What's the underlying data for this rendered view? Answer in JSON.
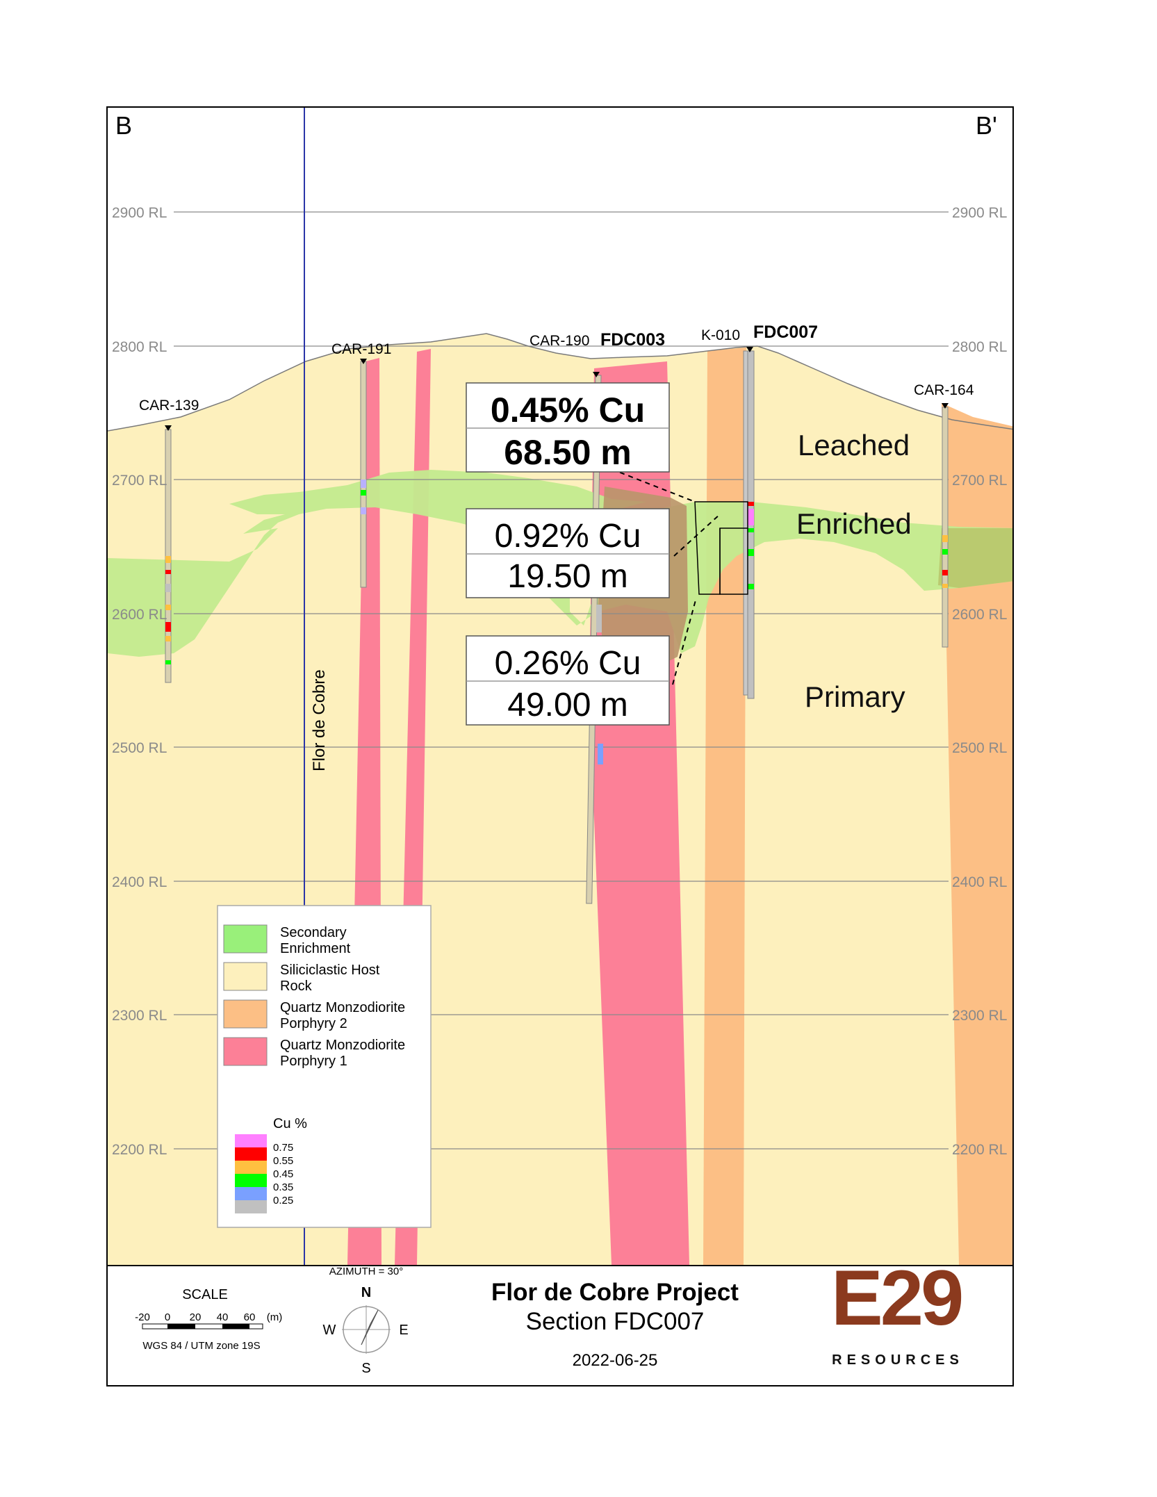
{
  "section": {
    "corner_left": "B",
    "corner_right": "B'",
    "rl_levels": [
      "2900 RL",
      "2800 RL",
      "2700 RL",
      "2600 RL",
      "2500 RL",
      "2400 RL",
      "2300 RL",
      "2200 RL"
    ],
    "fault_label": "Flor de Cobre",
    "holes": {
      "car139": "CAR-139",
      "car191": "CAR-191",
      "car190": "CAR-190",
      "fdc003": "FDC003",
      "k010": "K-010",
      "fdc007": "FDC007",
      "car164": "CAR-164"
    },
    "zones": {
      "leached": "Leached",
      "enriched": "Enriched",
      "primary": "Primary"
    },
    "intercepts": [
      {
        "grade": "0.45% Cu",
        "length": "68.50 m"
      },
      {
        "grade": "0.92% Cu",
        "length": "19.50 m"
      },
      {
        "grade": "0.26% Cu",
        "length": "49.00 m"
      }
    ]
  },
  "legend": {
    "units": [
      {
        "label_1": "Secondary",
        "label_2": "Enrichment",
        "color": "#99f07a"
      },
      {
        "label_1": "Siliciclastic Host",
        "label_2": "Rock",
        "color": "#fdf0bd"
      },
      {
        "label_1": "Quartz Monzodiorite",
        "label_2": "Porphyry 2",
        "color": "#fcbf85"
      },
      {
        "label_1": "Quartz Monzodiorite",
        "label_2": "Porphyry 1",
        "color": "#fc8097"
      }
    ],
    "cu_title": "Cu %",
    "cu_scale": [
      {
        "value": "0.75",
        "color": "#ff80ff"
      },
      {
        "value": "0.55",
        "color": "#ff0000"
      },
      {
        "value": "0.45",
        "color": "#ffc040"
      },
      {
        "value": "0.35",
        "color": "#00ff00"
      },
      {
        "value": "0.25",
        "color": "#7aa0ff"
      },
      {
        "value": "",
        "color": "#c0c0c0"
      }
    ]
  },
  "titleblock": {
    "scale_label": "SCALE",
    "scale_ticks": [
      "-20",
      "0",
      "20",
      "40",
      "60"
    ],
    "scale_unit": "(m)",
    "datum": "WGS 84 / UTM zone 19S",
    "azimuth": "AZIMUTH = 30°",
    "compass": {
      "n": "N",
      "s": "S",
      "e": "E",
      "w": "W"
    },
    "project": "Flor de Cobre Project",
    "section": "Section FDC007",
    "date": "2022-06-25",
    "logo_text": "E29",
    "logo_sub": "RESOURCES"
  },
  "colors": {
    "host": "#fdf0bd",
    "enrichment": "#c3ea8e",
    "porphyry1": "#fc8097",
    "porphyry2": "#fcbf85",
    "logo": "#8b3a1e"
  }
}
